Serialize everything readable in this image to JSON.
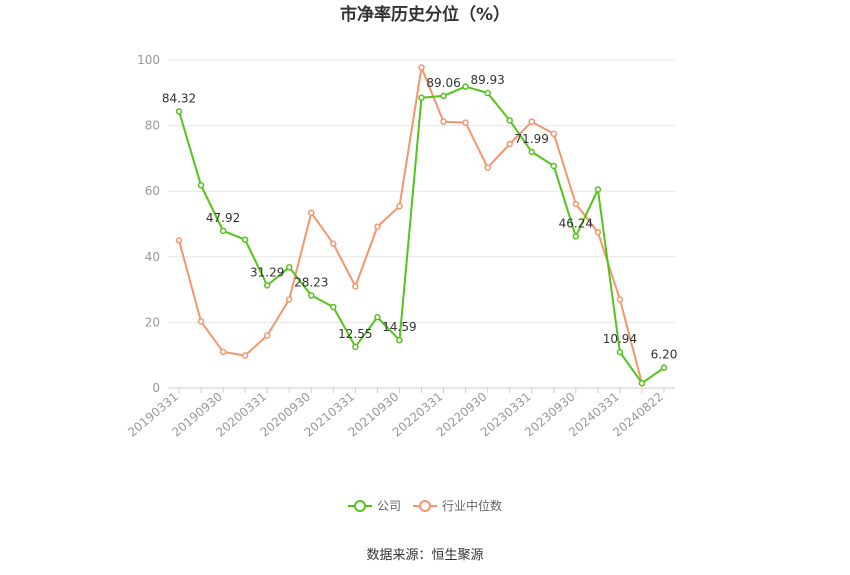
{
  "chart_data": {
    "type": "line",
    "title": "市净率历史分位（%）",
    "ylim": [
      0,
      100
    ],
    "yticks": [
      0,
      20,
      40,
      60,
      80,
      100
    ],
    "x_tick_labels": [
      "20190331",
      "20190930",
      "20200331",
      "20200930",
      "20210331",
      "20210930",
      "20220331",
      "20220930",
      "20230331",
      "20230930",
      "20240331",
      "20240822"
    ],
    "grid": true,
    "legend_position": "bottom",
    "series": [
      {
        "name": "公司",
        "color": "#52c41a",
        "values": [
          84.32,
          61.8,
          47.92,
          45.2,
          31.29,
          36.8,
          28.23,
          24.7,
          12.55,
          21.6,
          14.59,
          88.5,
          89.06,
          91.9,
          89.93,
          81.6,
          71.99,
          67.7,
          46.24,
          60.5,
          10.94,
          1.5,
          6.2
        ],
        "labels": {
          "0": "84.32",
          "2": "47.92",
          "4": "31.29",
          "6": "28.23",
          "8": "12.55",
          "10": "14.59",
          "12": "89.06",
          "14": "89.93",
          "16": "71.99",
          "18": "46.24",
          "20": "10.94",
          "22": "6.20"
        }
      },
      {
        "name": "行业中位数",
        "color": "#f5956b",
        "values": [
          45,
          20.3,
          11,
          9.9,
          16,
          27,
          53.4,
          44,
          31,
          49.2,
          55.4,
          97.7,
          81.2,
          80.9,
          67.2,
          74.4,
          81.2,
          77.5,
          56.1,
          47.5,
          27,
          1.4,
          null
        ]
      }
    ],
    "source": "数据来源：恒生聚源"
  }
}
